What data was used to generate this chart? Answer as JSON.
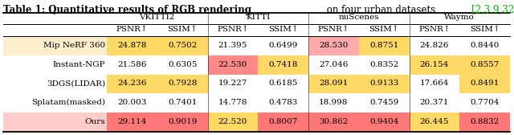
{
  "title_bold": "Table 1: Quantitative results of RGB rendering",
  "title_normal": " on four urban datasets ",
  "title_refs": "[2,3,9,32]",
  "title_refs_color": "#00bb00",
  "col_headers1": [
    "VKITTI2",
    "KITTI",
    "nuScenes",
    "Waymo"
  ],
  "col_headers2": [
    "PSNR↑",
    "SSIM↑",
    "PSNR↑",
    "SSIM↑",
    "PSNR↑",
    "SSIM↑",
    "PSNR↑",
    "SSIM↑"
  ],
  "rows": [
    [
      "Mip NeRF 360",
      "24.878",
      "0.7502",
      "21.395",
      "0.6499",
      "28.530",
      "0.8751",
      "24.826",
      "0.8440"
    ],
    [
      "Instant-NGP",
      "21.586",
      "0.6305",
      "22.530",
      "0.7418",
      "27.046",
      "0.8352",
      "26.154",
      "0.8557"
    ],
    [
      "3DGS(LIDAR)",
      "24.236",
      "0.7928",
      "19.227",
      "0.6185",
      "28.091",
      "0.9133",
      "17.664",
      "0.8491"
    ],
    [
      "Splatam(masked)",
      "20.003",
      "0.7401",
      "14.778",
      "0.4783",
      "18.998",
      "0.7459",
      "20.371",
      "0.7704"
    ],
    [
      "Ours",
      "29.114",
      "0.9019",
      "22.520",
      "0.8007",
      "30.862",
      "0.9404",
      "26.445",
      "0.8832"
    ]
  ],
  "cell_colors": [
    [
      "#FFEECC",
      "#FFD966",
      "#FFD966",
      "none",
      "none",
      "#FFAAAA",
      "#FFD966",
      "none",
      "none"
    ],
    [
      "none",
      "none",
      "none",
      "#FF8888",
      "#FFD966",
      "none",
      "none",
      "#FFD966",
      "#FFD966"
    ],
    [
      "none",
      "#FFD966",
      "#FFD966",
      "none",
      "none",
      "#FFD966",
      "#FFD966",
      "none",
      "#FFD966"
    ],
    [
      "none",
      "none",
      "none",
      "none",
      "none",
      "none",
      "none",
      "none",
      "none"
    ],
    [
      "#FFCCCC",
      "#FF7777",
      "#FF7777",
      "#FFD966",
      "#FF7777",
      "#FF7777",
      "#FF7777",
      "#FFD966",
      "#FF7777"
    ]
  ],
  "bg_color": "#FFFFFF"
}
